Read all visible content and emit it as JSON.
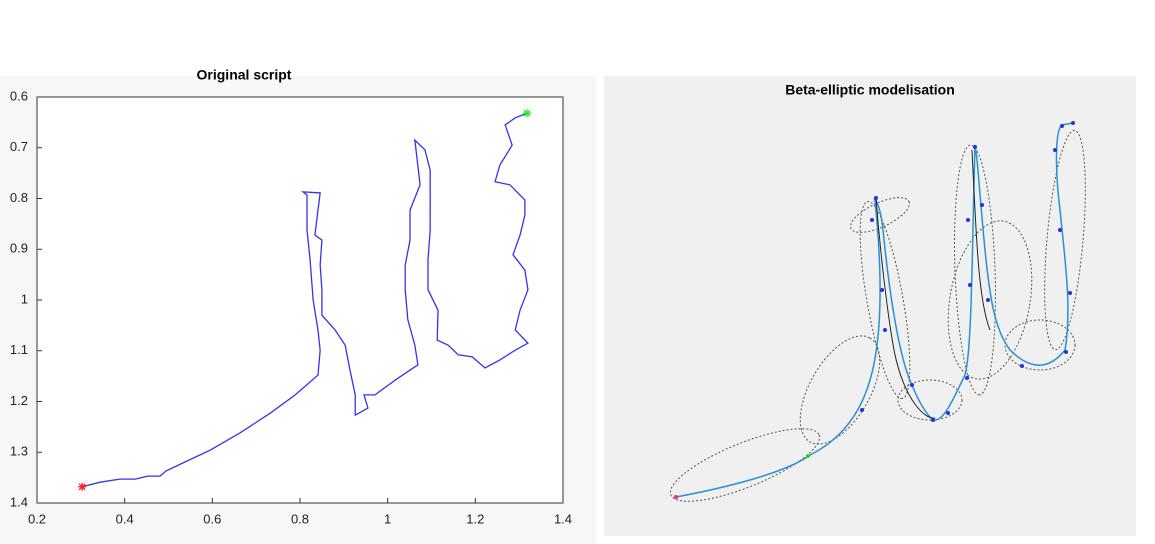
{
  "chart_data": [
    {
      "type": "line",
      "title": "Original script",
      "color": "#3333ee",
      "y_reversed": true,
      "xlim": [
        0.2,
        1.4
      ],
      "xticks": [
        0.2,
        0.4,
        0.6,
        0.8,
        1,
        1.2,
        1.4
      ],
      "ylim": [
        0.6,
        1.4
      ],
      "yticks": [
        0.6,
        0.7,
        0.8,
        0.9,
        1,
        1.1,
        1.2,
        1.3,
        1.4
      ],
      "x": [
        0.303,
        0.344,
        0.389,
        0.424,
        0.453,
        0.481,
        0.494,
        0.538,
        0.595,
        0.663,
        0.732,
        0.789,
        0.841,
        0.846,
        0.841,
        0.83,
        0.823,
        0.816,
        0.816,
        0.807,
        0.846,
        0.841,
        0.834,
        0.85,
        0.846,
        0.85,
        0.85,
        0.88,
        0.903,
        0.914,
        0.926,
        0.926,
        0.955,
        0.946,
        0.971,
        1.017,
        1.051,
        1.069,
        1.062,
        1.046,
        1.04,
        1.04,
        1.051,
        1.051,
        1.074,
        1.062,
        1.085,
        1.097,
        1.097,
        1.097,
        1.092,
        1.092,
        1.115,
        1.113,
        1.138,
        1.161,
        1.193,
        1.222,
        1.256,
        1.291,
        1.32,
        1.291,
        1.302,
        1.32,
        1.313,
        1.286,
        1.302,
        1.313,
        1.313,
        1.279,
        1.245,
        1.256,
        1.284,
        1.268,
        1.291,
        1.318
      ],
      "values": [
        1.368,
        1.359,
        1.353,
        1.353,
        1.347,
        1.347,
        1.337,
        1.319,
        1.296,
        1.262,
        1.223,
        1.187,
        1.148,
        1.099,
        1.059,
        1.0,
        0.921,
        0.862,
        0.793,
        0.787,
        0.789,
        0.823,
        0.872,
        0.882,
        0.931,
        0.98,
        1.03,
        1.059,
        1.089,
        1.138,
        1.187,
        1.227,
        1.213,
        1.187,
        1.187,
        1.158,
        1.138,
        1.128,
        1.089,
        1.039,
        0.98,
        0.931,
        0.882,
        0.823,
        0.773,
        0.685,
        0.704,
        0.744,
        0.793,
        0.862,
        0.921,
        0.98,
        1.02,
        1.079,
        1.089,
        1.108,
        1.112,
        1.134,
        1.118,
        1.099,
        1.085,
        1.059,
        1.02,
        0.98,
        0.941,
        0.911,
        0.872,
        0.833,
        0.803,
        0.773,
        0.767,
        0.734,
        0.695,
        0.655,
        0.641,
        0.632
      ],
      "markers": [
        {
          "x": 0.303,
          "y": 1.368,
          "color": "#ff2020"
        },
        {
          "x": 1.318,
          "y": 0.632,
          "color": "#22ee22"
        }
      ]
    },
    {
      "type": "plot",
      "title": "Beta-elliptic modelisation"
    }
  ]
}
